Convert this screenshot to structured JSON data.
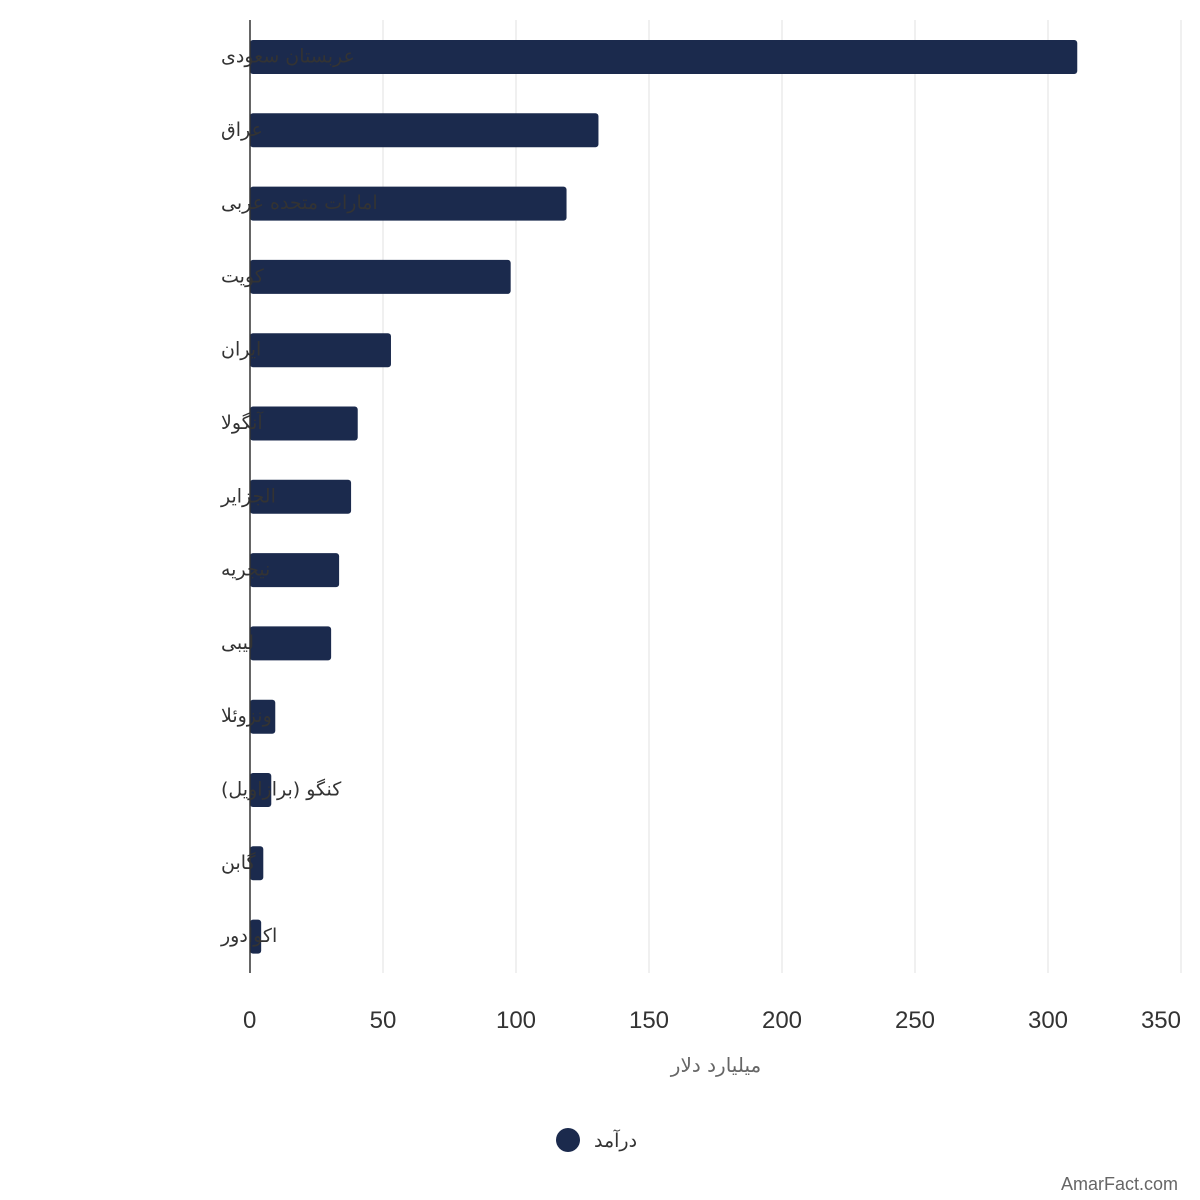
{
  "chart_data": {
    "type": "bar",
    "orientation": "horizontal",
    "categories": [
      "عربستان سعودی",
      "عراق",
      "امارات متحده عربی",
      "کویت",
      "ایران",
      "آنگولا",
      "الجزایر",
      "نیجریه",
      "لیبی",
      "ونزوئلا",
      "کنگو (برازاویل)",
      "گابن",
      "اکوادور"
    ],
    "series": [
      {
        "name": "درآمد",
        "values": [
          311,
          131,
          119,
          98,
          53,
          40.5,
          38,
          33.5,
          30.5,
          9.5,
          8,
          5,
          4.2
        ]
      }
    ],
    "xlim": [
      0,
      350
    ],
    "xticks": [
      "0",
      "50",
      "100",
      "150",
      "200",
      "250",
      "300",
      "350"
    ],
    "xlabel": "میلیارد دلار",
    "ylabel": "",
    "title": "",
    "grid": true,
    "legend_position": "bottom-center",
    "colors": {
      "bar": "#1b2a4d",
      "grid": "#e0e0e0",
      "axis": "#333333"
    }
  },
  "watermark": "AmarFact.com"
}
